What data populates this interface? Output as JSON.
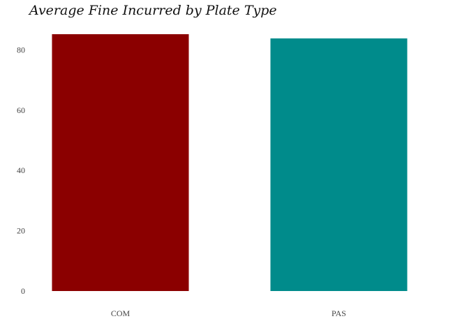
{
  "chart_data": {
    "type": "bar",
    "title": "Average Fine Incurred by Plate Type",
    "categories": [
      "COM",
      "PAS"
    ],
    "values": [
      85.2,
      83.8
    ],
    "colors": [
      "#8B0000",
      "#008B8B"
    ],
    "ylim": [
      0,
      85.2
    ],
    "yticks": [
      0,
      20,
      40,
      60,
      80
    ],
    "grid": false,
    "legend": "none"
  }
}
